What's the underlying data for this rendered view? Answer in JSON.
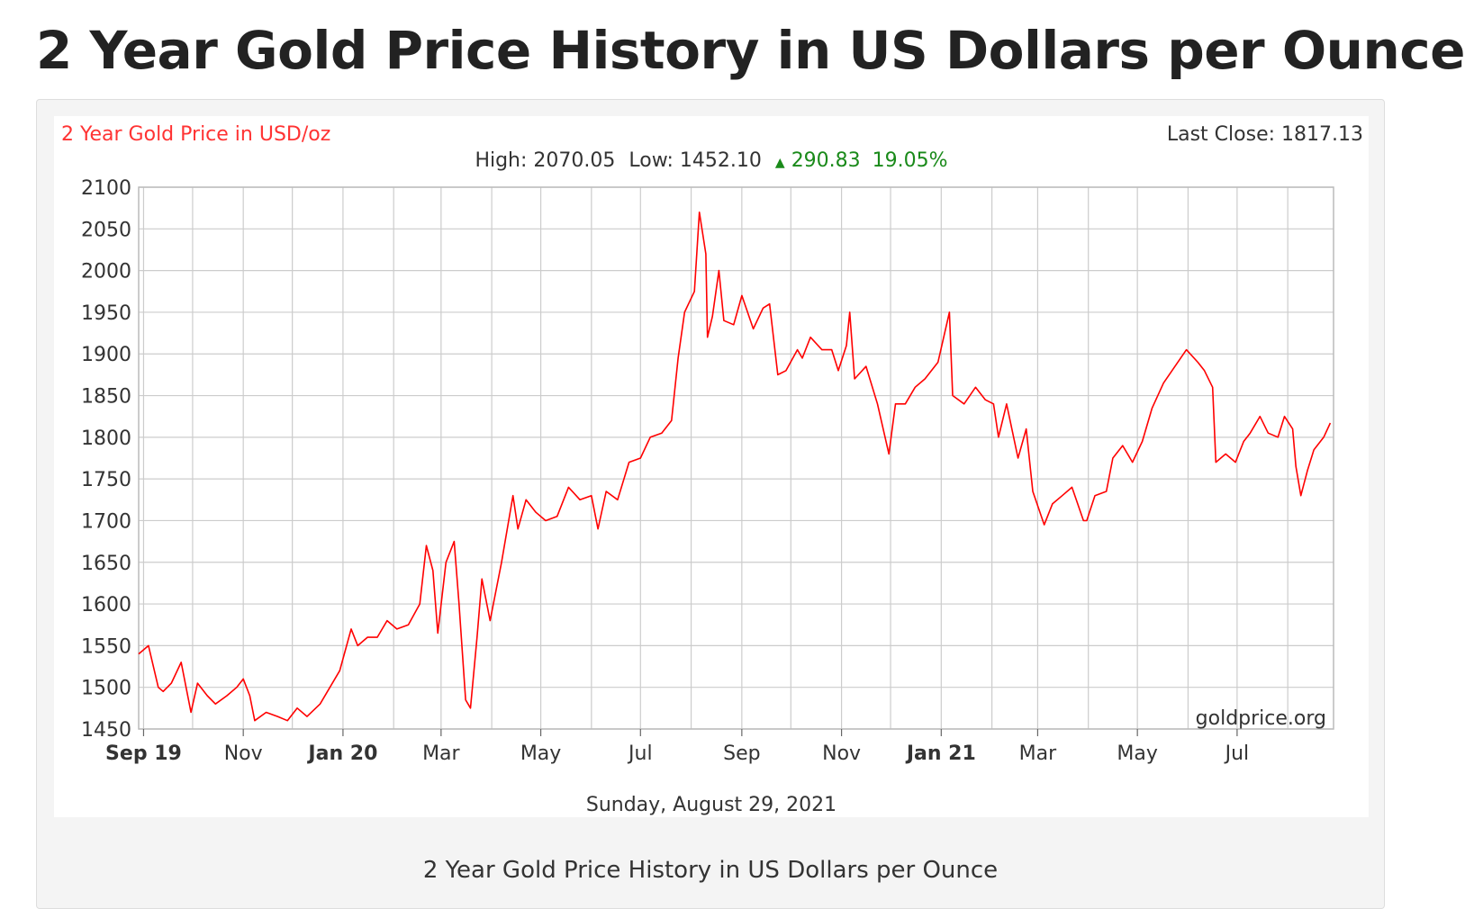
{
  "page": {
    "title": "2 Year Gold Price History in US Dollars per Ounce",
    "caption": "2 Year Gold Price History in US Dollars per Ounce"
  },
  "chart_data": {
    "type": "line",
    "title": "2 Year Gold Price in USD/oz",
    "last_close_label": "Last Close: 1817.13",
    "stats": {
      "high_label": "High: 2070.05",
      "low_label": "Low: 1452.10",
      "change_value": "290.83",
      "change_percent": "19.05%"
    },
    "date_label": "Sunday, August 29, 2021",
    "watermark": "goldprice.org",
    "xlabel": "",
    "ylabel": "",
    "ylim": [
      1450,
      2100
    ],
    "yticks": [
      1450,
      1500,
      1550,
      1600,
      1650,
      1700,
      1750,
      1800,
      1850,
      1900,
      1950,
      2000,
      2050,
      2100
    ],
    "x_range": [
      "2019-08-29",
      "2021-08-29"
    ],
    "x_ticks": [
      {
        "label": "Sep 19",
        "date": "2019-09-01",
        "bold": true
      },
      {
        "label": "Nov",
        "date": "2019-11-01",
        "bold": false
      },
      {
        "label": "Jan 20",
        "date": "2020-01-01",
        "bold": true
      },
      {
        "label": "Mar",
        "date": "2020-03-01",
        "bold": false
      },
      {
        "label": "May",
        "date": "2020-05-01",
        "bold": false
      },
      {
        "label": "Jul",
        "date": "2020-07-01",
        "bold": false
      },
      {
        "label": "Sep",
        "date": "2020-09-01",
        "bold": false
      },
      {
        "label": "Nov",
        "date": "2020-11-01",
        "bold": false
      },
      {
        "label": "Jan 21",
        "date": "2021-01-01",
        "bold": true
      },
      {
        "label": "Mar",
        "date": "2021-03-01",
        "bold": false
      },
      {
        "label": "May",
        "date": "2021-05-01",
        "bold": false
      },
      {
        "label": "Jul",
        "date": "2021-07-01",
        "bold": false
      }
    ],
    "x_gridlines": [
      "2019-09-01",
      "2019-10-01",
      "2019-11-01",
      "2019-12-01",
      "2020-01-01",
      "2020-02-01",
      "2020-03-01",
      "2020-04-01",
      "2020-05-01",
      "2020-06-01",
      "2020-07-01",
      "2020-08-01",
      "2020-09-01",
      "2020-10-01",
      "2020-11-01",
      "2020-12-01",
      "2021-01-01",
      "2021-02-01",
      "2021-03-01",
      "2021-04-01",
      "2021-05-01",
      "2021-06-01",
      "2021-07-01",
      "2021-08-01"
    ],
    "grid": true,
    "line_color": "#ff0000",
    "series": [
      {
        "values": [
          [
            "2019-08-29",
            1540
          ],
          [
            "2019-09-04",
            1550
          ],
          [
            "2019-09-10",
            1500
          ],
          [
            "2019-09-13",
            1495
          ],
          [
            "2019-09-18",
            1505
          ],
          [
            "2019-09-24",
            1530
          ],
          [
            "2019-09-30",
            1470
          ],
          [
            "2019-10-04",
            1505
          ],
          [
            "2019-10-10",
            1490
          ],
          [
            "2019-10-15",
            1480
          ],
          [
            "2019-10-22",
            1490
          ],
          [
            "2019-10-28",
            1500
          ],
          [
            "2019-11-01",
            1510
          ],
          [
            "2019-11-05",
            1490
          ],
          [
            "2019-11-08",
            1460
          ],
          [
            "2019-11-15",
            1470
          ],
          [
            "2019-11-22",
            1465
          ],
          [
            "2019-11-28",
            1460
          ],
          [
            "2019-12-04",
            1475
          ],
          [
            "2019-12-10",
            1465
          ],
          [
            "2019-12-18",
            1480
          ],
          [
            "2019-12-24",
            1500
          ],
          [
            "2019-12-30",
            1520
          ],
          [
            "2020-01-06",
            1570
          ],
          [
            "2020-01-10",
            1550
          ],
          [
            "2020-01-16",
            1560
          ],
          [
            "2020-01-22",
            1560
          ],
          [
            "2020-01-28",
            1580
          ],
          [
            "2020-02-03",
            1570
          ],
          [
            "2020-02-10",
            1575
          ],
          [
            "2020-02-17",
            1600
          ],
          [
            "2020-02-21",
            1670
          ],
          [
            "2020-02-25",
            1640
          ],
          [
            "2020-02-28",
            1565
          ],
          [
            "2020-03-04",
            1650
          ],
          [
            "2020-03-09",
            1675
          ],
          [
            "2020-03-12",
            1600
          ],
          [
            "2020-03-16",
            1485
          ],
          [
            "2020-03-19",
            1475
          ],
          [
            "2020-03-23",
            1560
          ],
          [
            "2020-03-26",
            1630
          ],
          [
            "2020-03-31",
            1580
          ],
          [
            "2020-04-07",
            1650
          ],
          [
            "2020-04-14",
            1730
          ],
          [
            "2020-04-17",
            1690
          ],
          [
            "2020-04-22",
            1725
          ],
          [
            "2020-04-28",
            1710
          ],
          [
            "2020-05-04",
            1700
          ],
          [
            "2020-05-11",
            1705
          ],
          [
            "2020-05-18",
            1740
          ],
          [
            "2020-05-25",
            1725
          ],
          [
            "2020-06-01",
            1730
          ],
          [
            "2020-06-05",
            1690
          ],
          [
            "2020-06-10",
            1735
          ],
          [
            "2020-06-17",
            1725
          ],
          [
            "2020-06-24",
            1770
          ],
          [
            "2020-07-01",
            1775
          ],
          [
            "2020-07-07",
            1800
          ],
          [
            "2020-07-14",
            1805
          ],
          [
            "2020-07-20",
            1820
          ],
          [
            "2020-07-24",
            1895
          ],
          [
            "2020-07-28",
            1950
          ],
          [
            "2020-08-03",
            1975
          ],
          [
            "2020-08-06",
            2070
          ],
          [
            "2020-08-10",
            2020
          ],
          [
            "2020-08-11",
            1920
          ],
          [
            "2020-08-14",
            1945
          ],
          [
            "2020-08-18",
            2000
          ],
          [
            "2020-08-21",
            1940
          ],
          [
            "2020-08-27",
            1935
          ],
          [
            "2020-09-01",
            1970
          ],
          [
            "2020-09-08",
            1930
          ],
          [
            "2020-09-14",
            1955
          ],
          [
            "2020-09-18",
            1960
          ],
          [
            "2020-09-23",
            1875
          ],
          [
            "2020-09-28",
            1880
          ],
          [
            "2020-10-05",
            1905
          ],
          [
            "2020-10-08",
            1895
          ],
          [
            "2020-10-13",
            1920
          ],
          [
            "2020-10-20",
            1905
          ],
          [
            "2020-10-26",
            1905
          ],
          [
            "2020-10-30",
            1880
          ],
          [
            "2020-11-04",
            1910
          ],
          [
            "2020-11-06",
            1950
          ],
          [
            "2020-11-09",
            1870
          ],
          [
            "2020-11-16",
            1885
          ],
          [
            "2020-11-23",
            1840
          ],
          [
            "2020-11-30",
            1780
          ],
          [
            "2020-12-04",
            1840
          ],
          [
            "2020-12-10",
            1840
          ],
          [
            "2020-12-16",
            1860
          ],
          [
            "2020-12-22",
            1870
          ],
          [
            "2020-12-30",
            1890
          ],
          [
            "2021-01-06",
            1950
          ],
          [
            "2021-01-08",
            1850
          ],
          [
            "2021-01-15",
            1840
          ],
          [
            "2021-01-22",
            1860
          ],
          [
            "2021-01-28",
            1845
          ],
          [
            "2021-02-02",
            1840
          ],
          [
            "2021-02-05",
            1800
          ],
          [
            "2021-02-10",
            1840
          ],
          [
            "2021-02-17",
            1775
          ],
          [
            "2021-02-22",
            1810
          ],
          [
            "2021-02-26",
            1735
          ],
          [
            "2021-03-05",
            1695
          ],
          [
            "2021-03-10",
            1720
          ],
          [
            "2021-03-16",
            1730
          ],
          [
            "2021-03-22",
            1740
          ],
          [
            "2021-03-29",
            1700
          ],
          [
            "2021-03-31",
            1700
          ],
          [
            "2021-04-05",
            1730
          ],
          [
            "2021-04-12",
            1735
          ],
          [
            "2021-04-16",
            1775
          ],
          [
            "2021-04-22",
            1790
          ],
          [
            "2021-04-28",
            1770
          ],
          [
            "2021-05-04",
            1795
          ],
          [
            "2021-05-10",
            1835
          ],
          [
            "2021-05-17",
            1865
          ],
          [
            "2021-05-24",
            1885
          ],
          [
            "2021-05-31",
            1905
          ],
          [
            "2021-06-07",
            1890
          ],
          [
            "2021-06-11",
            1880
          ],
          [
            "2021-06-16",
            1860
          ],
          [
            "2021-06-18",
            1770
          ],
          [
            "2021-06-24",
            1780
          ],
          [
            "2021-06-30",
            1770
          ],
          [
            "2021-07-05",
            1795
          ],
          [
            "2021-07-09",
            1805
          ],
          [
            "2021-07-15",
            1825
          ],
          [
            "2021-07-20",
            1805
          ],
          [
            "2021-07-26",
            1800
          ],
          [
            "2021-07-30",
            1825
          ],
          [
            "2021-08-04",
            1810
          ],
          [
            "2021-08-06",
            1765
          ],
          [
            "2021-08-09",
            1730
          ],
          [
            "2021-08-13",
            1760
          ],
          [
            "2021-08-17",
            1785
          ],
          [
            "2021-08-23",
            1800
          ],
          [
            "2021-08-27",
            1817.13
          ]
        ]
      }
    ]
  }
}
